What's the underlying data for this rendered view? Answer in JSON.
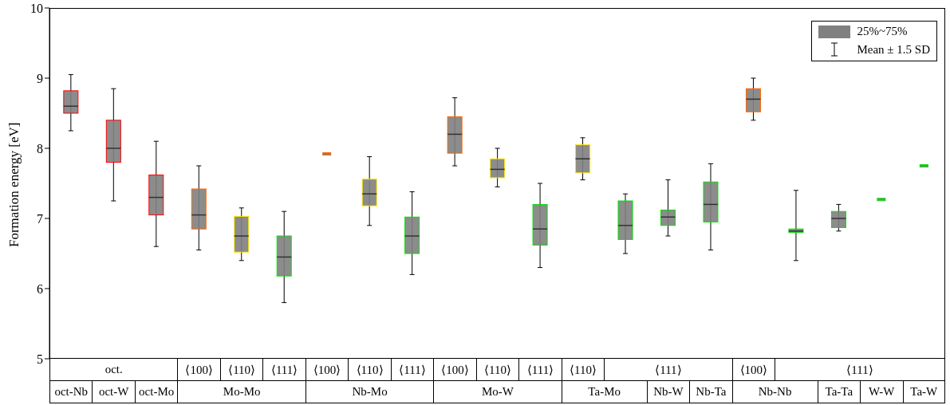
{
  "chart_data": {
    "type": "box",
    "ylabel": "Formation energy [eV]",
    "ylim": [
      5,
      10
    ],
    "yticks": [
      5,
      6,
      7,
      8,
      9,
      10
    ],
    "legend": "top right",
    "categories": [
      null,
      null,
      null,
      "⟨100⟩",
      "⟨110⟩",
      "⟨111⟩",
      "⟨100⟩",
      "⟨110⟩",
      "⟨111⟩",
      "⟨100⟩",
      "⟨110⟩",
      "⟨111⟩",
      "⟨110⟩",
      null,
      null,
      null,
      "⟨100⟩",
      null,
      null,
      null,
      null
    ],
    "colors": [
      "#ff0000",
      "#ff0000",
      "#ff0000",
      "#ff6600",
      "#ffe600",
      "#00e000",
      "#ff6600",
      "#ffe600",
      "#00e000",
      "#ff6600",
      "#ffe600",
      "#00e000",
      "#ffe600",
      "#00e000",
      "#00e000",
      "#00e000",
      "#ff6600",
      "#00e000",
      "#00e000",
      "#00e000",
      "#00e000"
    ],
    "series": [
      {
        "name": "25%~75%",
        "color": "#808080",
        "boxes": [
          {
            "low": 8.25,
            "q1": 8.5,
            "median": 8.6,
            "q3": 8.82,
            "high": 9.05
          },
          {
            "low": 7.25,
            "q1": 7.8,
            "median": 8.0,
            "q3": 8.4,
            "high": 8.85
          },
          {
            "low": 6.6,
            "q1": 7.05,
            "median": 7.3,
            "q3": 7.62,
            "high": 8.1
          },
          {
            "low": 6.55,
            "q1": 6.85,
            "median": 7.05,
            "q3": 7.42,
            "high": 7.75
          },
          {
            "low": 6.4,
            "q1": 6.52,
            "median": 6.75,
            "q3": 7.03,
            "high": 7.15
          },
          {
            "low": 5.8,
            "q1": 6.18,
            "median": 6.45,
            "q3": 6.75,
            "high": 7.1
          },
          {
            "low": 7.92,
            "q1": 7.92,
            "median": 7.92,
            "q3": 7.92,
            "high": 7.92
          },
          {
            "low": 6.9,
            "q1": 7.18,
            "median": 7.35,
            "q3": 7.56,
            "high": 7.88
          },
          {
            "low": 6.2,
            "q1": 6.5,
            "median": 6.75,
            "q3": 7.02,
            "high": 7.38
          },
          {
            "low": 7.75,
            "q1": 7.93,
            "median": 8.2,
            "q3": 8.45,
            "high": 8.72
          },
          {
            "low": 7.45,
            "q1": 7.58,
            "median": 7.7,
            "q3": 7.85,
            "high": 8.0
          },
          {
            "low": 6.3,
            "q1": 6.62,
            "median": 6.85,
            "q3": 7.2,
            "high": 7.5
          },
          {
            "low": 7.55,
            "q1": 7.65,
            "median": 7.85,
            "q3": 8.05,
            "high": 8.15
          },
          {
            "low": 6.5,
            "q1": 6.7,
            "median": 6.9,
            "q3": 7.25,
            "high": 7.35
          },
          {
            "low": 6.75,
            "q1": 6.9,
            "median": 7.02,
            "q3": 7.12,
            "high": 7.55
          },
          {
            "low": 6.55,
            "q1": 6.95,
            "median": 7.2,
            "q3": 7.52,
            "high": 7.78
          },
          {
            "low": 8.4,
            "q1": 8.52,
            "median": 8.7,
            "q3": 8.85,
            "high": 9.0
          },
          {
            "low": 6.4,
            "q1": 6.8,
            "median": 6.82,
            "q3": 6.85,
            "high": 7.4
          },
          {
            "low": 6.82,
            "q1": 6.87,
            "median": 7.0,
            "q3": 7.1,
            "high": 7.2
          },
          {
            "low": 7.27,
            "q1": 7.27,
            "median": 7.27,
            "q3": 7.27,
            "high": 7.27
          },
          {
            "low": 7.75,
            "q1": 7.75,
            "median": 7.75,
            "q3": 7.75,
            "high": 7.75
          }
        ]
      }
    ],
    "annotations": [
      "Mean ± 1.5 SD",
      "oct.",
      "⟨111⟩",
      "⟨111⟩",
      "oct-Nb",
      "oct-W",
      "oct-Mo",
      "Mo-Mo",
      "Nb-Mo",
      "Mo-W",
      "Ta-Mo",
      "Nb-W",
      "Nb-Ta",
      "Nb-Nb",
      "Ta-Ta",
      "W-W",
      "Ta-W"
    ]
  }
}
